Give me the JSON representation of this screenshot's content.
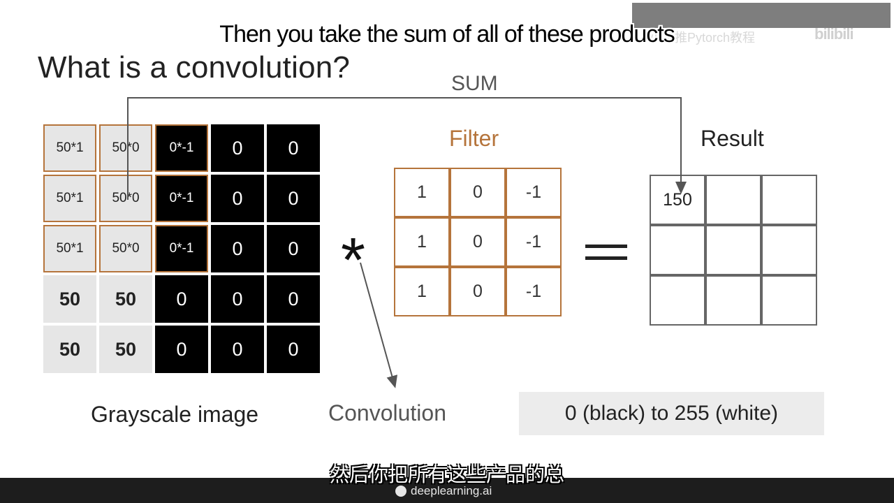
{
  "slide": {
    "title": "What is a convolution?",
    "sum_label": "SUM",
    "filter_title": "Filter",
    "result_title": "Result",
    "operator": "*",
    "grayscale_label": "Grayscale image",
    "convolution_label": "Convolution",
    "range_note": "0 (black) to 255 (white)"
  },
  "image_grid": [
    [
      "50*1",
      "50*0",
      "0*-1",
      "0",
      "0"
    ],
    [
      "50*1",
      "50*0",
      "0*-1",
      "0",
      "0"
    ],
    [
      "50*1",
      "50*0",
      "0*-1",
      "0",
      "0"
    ],
    [
      "50",
      "50",
      "0",
      "0",
      "0"
    ],
    [
      "50",
      "50",
      "0",
      "0",
      "0"
    ]
  ],
  "filter_grid": [
    [
      "1",
      "0",
      "-1"
    ],
    [
      "1",
      "0",
      "-1"
    ],
    [
      "1",
      "0",
      "-1"
    ]
  ],
  "result_grid": [
    [
      "150",
      "",
      ""
    ],
    [
      "",
      "",
      ""
    ],
    [
      "",
      "",
      ""
    ]
  ],
  "captions": {
    "english": "Then you take the sum of all of these products",
    "chinese": "然后你把所有这些产品的总"
  },
  "watermark": {
    "channel": "小工推Pytorch教程",
    "logo": "bilibili"
  },
  "footer": {
    "brand": "deeplearning.ai"
  }
}
